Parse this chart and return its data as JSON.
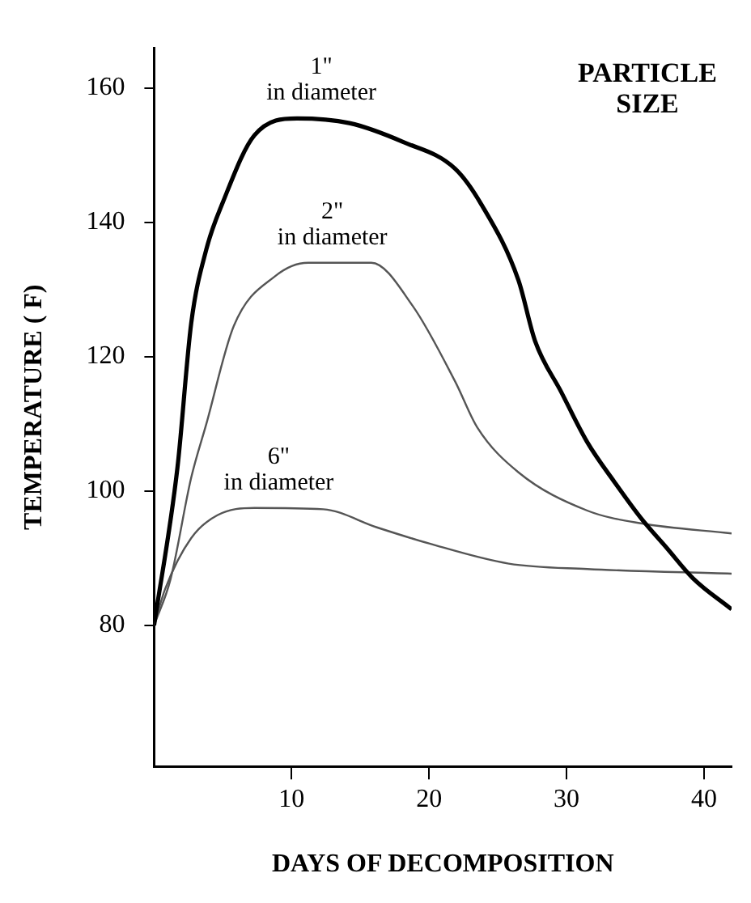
{
  "chart_data": {
    "type": "line",
    "xlabel": "DAYS OF DECOMPOSITION",
    "ylabel": "TEMPERATURE ( F)",
    "xlim": [
      0,
      42
    ],
    "xticks": [
      10,
      20,
      30,
      40
    ],
    "ylim": [
      59,
      166
    ],
    "yticks": [
      80,
      100,
      120,
      140,
      160
    ],
    "grid": false,
    "legend": false,
    "marker": "none",
    "line_style": "solid",
    "series": [
      {
        "name": "1\" in diameter",
        "color": "#000000",
        "x": [
          0,
          1.7,
          2.7,
          3.8,
          5,
          7.3,
          10.4,
          14.2,
          18.1,
          21.9,
          23.8,
          26.5,
          27.7,
          29.6,
          31.5,
          33.5,
          35.4,
          37.3,
          39.2,
          42
        ],
        "values": [
          80,
          103.5,
          125,
          136,
          143,
          153,
          155.5,
          154.8,
          152,
          148,
          142.7,
          131.4,
          122.4,
          114.8,
          107.3,
          101.3,
          96,
          91.5,
          87,
          82.4
        ]
      },
      {
        "name": "2\" in diameter",
        "color": "#555555",
        "x": [
          0,
          1.2,
          2.7,
          3.8,
          5.8,
          8.8,
          11.2,
          15.8,
          18.8,
          21.9,
          23.5,
          26.5,
          31.5,
          35.4,
          42
        ],
        "values": [
          80,
          86.9,
          102,
          110,
          124.6,
          132,
          134,
          134,
          127.6,
          116.3,
          109.5,
          102.8,
          97.1,
          95.2,
          93.7
        ]
      },
      {
        "name": "6\" in diameter",
        "color": "#555555",
        "x": [
          0,
          0.8,
          2.7,
          4.6,
          7.3,
          12.3,
          16.2,
          20,
          25.8,
          31.5,
          42
        ],
        "values": [
          80,
          85.4,
          93,
          96.4,
          97.5,
          97.3,
          94.6,
          92.2,
          89.2,
          88.4,
          87.7
        ]
      }
    ],
    "annotations": [
      "PARTICLE\nSIZE"
    ]
  }
}
